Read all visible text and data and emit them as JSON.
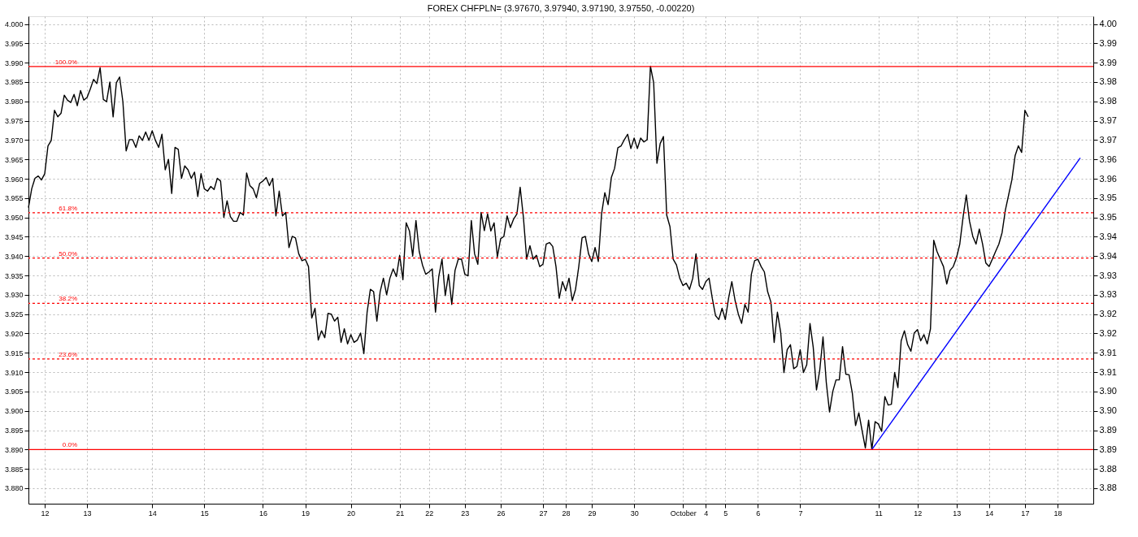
{
  "chart_data": {
    "type": "line",
    "title": "FOREX CHFPLN= (3.97670, 3.97940, 3.97190, 3.97550, -0.00220)",
    "ylim": [
      3.876,
      4.002
    ],
    "y2lim": [
      3.876,
      4.002
    ],
    "categories": [
      null,
      null,
      null,
      null,
      null,
      "12",
      null,
      null,
      null,
      null,
      null,
      null,
      null,
      null,
      null,
      null,
      null,
      null,
      "13",
      null,
      null,
      null,
      null,
      null,
      null,
      null,
      null,
      null,
      null,
      null,
      null,
      null,
      null,
      null,
      null,
      null,
      null,
      null,
      "14",
      null,
      null,
      null,
      null,
      null,
      null,
      null,
      null,
      null,
      null,
      null,
      null,
      null,
      null,
      null,
      "15",
      null,
      null,
      null,
      null,
      null,
      null,
      null,
      null,
      null,
      null,
      null,
      null,
      null,
      null,
      null,
      null,
      null,
      "16",
      null,
      null,
      null,
      null,
      null,
      null,
      null,
      null,
      null,
      null,
      null,
      null,
      "19",
      null,
      null,
      null,
      null,
      null,
      null,
      null,
      null,
      null,
      null,
      null,
      null,
      null,
      "20",
      null,
      null,
      null,
      null,
      null,
      null,
      null,
      null,
      null,
      null,
      null,
      null,
      null,
      null,
      "21",
      null,
      null,
      null,
      null,
      null,
      null,
      null,
      null,
      "22",
      null,
      null,
      null,
      null,
      null,
      null,
      null,
      null,
      null,
      null,
      "23",
      null,
      null,
      null,
      null,
      null,
      null,
      null,
      null,
      null,
      null,
      "26",
      null,
      null,
      null,
      null,
      null,
      null,
      null,
      null,
      null,
      null,
      null,
      null,
      "27",
      null,
      null,
      null,
      null,
      null,
      null,
      "28",
      null,
      null,
      null,
      null,
      null,
      null,
      null,
      "29",
      null,
      null,
      null,
      null,
      null,
      null,
      null,
      null,
      null,
      null,
      null,
      null,
      "30",
      null,
      null,
      null,
      null,
      null,
      null,
      null,
      null,
      null,
      null,
      null,
      null,
      null,
      null,
      "October",
      null,
      null,
      null,
      null,
      null,
      null,
      "4",
      null,
      null,
      null,
      null,
      null,
      "5",
      null,
      null,
      null,
      null,
      null,
      null,
      null,
      null,
      null,
      "6",
      null,
      null,
      null,
      null,
      null,
      null,
      null,
      null,
      null,
      null,
      null,
      null,
      "7",
      null,
      null,
      null,
      null,
      null,
      null,
      null,
      null,
      null,
      null,
      null,
      null,
      null,
      null,
      null,
      null,
      null,
      null,
      null,
      null,
      null,
      null,
      null,
      "11",
      null,
      null,
      null,
      null,
      null,
      null,
      null,
      null,
      null,
      null,
      null,
      "12",
      null,
      null,
      null,
      null,
      null,
      null,
      null,
      null,
      null,
      null,
      null,
      "13",
      null,
      null,
      null,
      null,
      null,
      null,
      null,
      null,
      null,
      "14",
      null,
      null,
      null,
      null,
      null,
      null,
      null,
      null,
      null,
      null,
      "17",
      null,
      null,
      null,
      null,
      null,
      null,
      null,
      null,
      null,
      "18",
      null,
      null,
      null,
      null,
      null,
      null,
      null,
      null,
      null,
      null,
      null
    ],
    "yticks": [
      {
        "value": 3.88,
        "label": "3.880"
      },
      {
        "value": 3.885,
        "label": "3.885"
      },
      {
        "value": 3.89,
        "label": "3.890"
      },
      {
        "value": 3.895,
        "label": "3.895"
      },
      {
        "value": 3.9,
        "label": "3.900"
      },
      {
        "value": 3.905,
        "label": "3.905"
      },
      {
        "value": 3.91,
        "label": "3.910"
      },
      {
        "value": 3.915,
        "label": "3.915"
      },
      {
        "value": 3.92,
        "label": "3.920"
      },
      {
        "value": 3.925,
        "label": "3.925"
      },
      {
        "value": 3.93,
        "label": "3.930"
      },
      {
        "value": 3.935,
        "label": "3.935"
      },
      {
        "value": 3.94,
        "label": "3.940"
      },
      {
        "value": 3.945,
        "label": "3.945"
      },
      {
        "value": 3.95,
        "label": "3.950"
      },
      {
        "value": 3.955,
        "label": "3.955"
      },
      {
        "value": 3.96,
        "label": "3.960"
      },
      {
        "value": 3.965,
        "label": "3.965"
      },
      {
        "value": 3.97,
        "label": "3.970"
      },
      {
        "value": 3.975,
        "label": "3.975"
      },
      {
        "value": 3.98,
        "label": "3.980"
      },
      {
        "value": 3.985,
        "label": "3.985"
      },
      {
        "value": 3.99,
        "label": "3.990"
      },
      {
        "value": 3.995,
        "label": "3.995"
      },
      {
        "value": 4.0,
        "label": "4.000"
      }
    ],
    "y2ticks": [
      {
        "value": 3.88,
        "label": "3.88"
      },
      {
        "value": 3.885,
        "label": "3.88"
      },
      {
        "value": 3.89,
        "label": "3.89"
      },
      {
        "value": 3.895,
        "label": "3.89"
      },
      {
        "value": 3.9,
        "label": "3.90"
      },
      {
        "value": 3.905,
        "label": "3.90"
      },
      {
        "value": 3.91,
        "label": "3.91"
      },
      {
        "value": 3.915,
        "label": "3.91"
      },
      {
        "value": 3.92,
        "label": "3.92"
      },
      {
        "value": 3.925,
        "label": "3.92"
      },
      {
        "value": 3.93,
        "label": "3.93"
      },
      {
        "value": 3.935,
        "label": "3.93"
      },
      {
        "value": 3.94,
        "label": "3.94"
      },
      {
        "value": 3.945,
        "label": "3.94"
      },
      {
        "value": 3.95,
        "label": "3.95"
      },
      {
        "value": 3.955,
        "label": "3.95"
      },
      {
        "value": 3.96,
        "label": "3.96"
      },
      {
        "value": 3.965,
        "label": "3.96"
      },
      {
        "value": 3.97,
        "label": "3.97"
      },
      {
        "value": 3.975,
        "label": "3.97"
      },
      {
        "value": 3.98,
        "label": "3.98"
      },
      {
        "value": 3.985,
        "label": "3.98"
      },
      {
        "value": 3.99,
        "label": "3.99"
      },
      {
        "value": 3.995,
        "label": "3.99"
      },
      {
        "value": 4.0,
        "label": "4.00"
      }
    ],
    "grid": true,
    "ref_lines": [
      {
        "axis": "y",
        "value": 3.989,
        "color": "#ff0000",
        "line_style": "solid"
      },
      {
        "axis": "y",
        "value": 3.9512,
        "color": "#ff0000",
        "line_style": "dotted"
      },
      {
        "axis": "y",
        "value": 3.9395,
        "color": "#ff0000",
        "line_style": "dotted"
      },
      {
        "axis": "y",
        "value": 3.9278,
        "color": "#ff0000",
        "line_style": "dotted"
      },
      {
        "axis": "y",
        "value": 3.9134,
        "color": "#ff0000",
        "line_style": "dotted"
      },
      {
        "axis": "y",
        "value": 3.89,
        "color": "#ff0000",
        "line_style": "solid"
      }
    ],
    "annotations": [
      {
        "text": "100.0%",
        "y": 3.989
      },
      {
        "text": "61.8%",
        "y": 3.9512
      },
      {
        "text": "50.0%",
        "y": 3.9395
      },
      {
        "text": "38.2%",
        "y": 3.9278
      },
      {
        "text": "23.6%",
        "y": 3.9134
      },
      {
        "text": "0.0%",
        "y": 3.89
      }
    ],
    "series": [
      {
        "color": "#000000",
        "values": [
          3.9525,
          3.9574,
          3.9601,
          3.9607,
          3.9597,
          3.9613,
          3.9685,
          3.9699,
          3.9777,
          3.976,
          3.9769,
          3.9816,
          3.9803,
          3.9797,
          3.9818,
          3.9789,
          3.9828,
          3.9803,
          3.981,
          3.9832,
          3.9857,
          3.9846,
          3.9887,
          3.9805,
          3.9799,
          3.985,
          3.976,
          3.9848,
          3.9863,
          3.9799,
          3.9672,
          3.9701,
          3.9701,
          3.9681,
          3.9711,
          3.9699,
          3.9721,
          3.9699,
          3.9724,
          3.9699,
          3.9681,
          3.9715,
          3.9623,
          3.965,
          3.9562,
          3.9681,
          3.9676,
          3.9601,
          3.9633,
          3.9623,
          3.9601,
          3.9617,
          3.9554,
          3.9613,
          3.9574,
          3.9568,
          3.958,
          3.9572,
          3.9601,
          3.9594,
          3.95,
          3.9543,
          3.9502,
          3.949,
          3.949,
          3.9513,
          3.9506,
          3.9615,
          3.9582,
          3.9574,
          3.9551,
          3.9588,
          3.9594,
          3.9603,
          3.9582,
          3.9601,
          3.9504,
          3.9568,
          3.9504,
          3.9513,
          3.9422,
          3.9451,
          3.9447,
          3.9406,
          3.9388,
          3.9392,
          3.9373,
          3.924,
          3.9265,
          3.9183,
          3.9207,
          3.9189,
          3.9252,
          3.925,
          3.9232,
          3.9242,
          3.9177,
          3.9212,
          3.9173,
          3.9197,
          3.9177,
          3.9183,
          3.9201,
          3.9148,
          3.9255,
          3.9314,
          3.9308,
          3.9232,
          3.9308,
          3.9343,
          3.93,
          3.9343,
          3.9367,
          3.9347,
          3.9402,
          3.9339,
          3.9486,
          3.9465,
          3.94,
          3.9492,
          3.9412,
          3.9377,
          3.9353,
          3.9359,
          3.9367,
          3.9255,
          3.9347,
          3.9392,
          3.9298,
          3.9353,
          3.9275,
          3.9363,
          3.9392,
          3.9392,
          3.9353,
          3.9349,
          3.9492,
          3.9406,
          3.9379,
          3.9513,
          3.9466,
          3.9509,
          3.9465,
          3.9486,
          3.9398,
          3.9445,
          3.9451,
          3.9504,
          3.9474,
          3.9496,
          3.9509,
          3.9578,
          3.95,
          3.9392,
          3.9427,
          3.9392,
          3.9402,
          3.9373,
          3.9379,
          3.9431,
          3.9435,
          3.9425,
          3.9373,
          3.9291,
          3.9334,
          3.931,
          3.9343,
          3.9285,
          3.9314,
          3.9373,
          3.9447,
          3.9451,
          3.9406,
          3.9386,
          3.9422,
          3.9386,
          3.9509,
          3.9564,
          3.9533,
          3.9603,
          3.9627,
          3.968,
          3.9685,
          3.9701,
          3.9715,
          3.9678,
          3.9705,
          3.9678,
          3.9705,
          3.9695,
          3.9701,
          3.9891,
          3.9848,
          3.964,
          3.9691,
          3.9709,
          3.9506,
          3.9476,
          3.9392,
          3.9377,
          3.9343,
          3.9324,
          3.933,
          3.9314,
          3.9343,
          3.9406,
          3.9324,
          3.9314,
          3.9334,
          3.9343,
          3.9291,
          3.9246,
          3.9236,
          3.9265,
          3.9236,
          3.9291,
          3.9334,
          3.9285,
          3.925,
          3.9226,
          3.9275,
          3.9255,
          3.9353,
          3.9388,
          3.9392,
          3.9373,
          3.9359,
          3.9308,
          3.9281,
          3.9177,
          3.9255,
          3.9203,
          3.9099,
          3.9158,
          3.9171,
          3.9109,
          3.9115,
          3.9158,
          3.9099,
          3.9119,
          3.9226,
          3.9164,
          3.9054,
          3.9105,
          3.9191,
          3.9074,
          3.8997,
          3.905,
          3.908,
          3.908,
          3.9166,
          3.9095,
          3.9093,
          3.9046,
          3.8962,
          3.8995,
          3.8949,
          3.8904,
          3.8976,
          3.89,
          3.8972,
          3.8966,
          3.8947,
          3.9037,
          3.9015,
          3.9017,
          3.9099,
          3.906,
          3.9181,
          3.9207,
          3.9171,
          3.9154,
          3.9201,
          3.921,
          3.9181,
          3.9197,
          3.9173,
          3.9212,
          3.9441,
          3.9412,
          3.9392,
          3.9373,
          3.9328,
          3.9363,
          3.9373,
          3.9396,
          3.9431,
          3.95,
          3.9558,
          3.949,
          3.9451,
          3.9431,
          3.947,
          3.9431,
          3.9382,
          3.9373,
          3.9392,
          3.9412,
          3.9431,
          3.9461,
          3.9519,
          3.9558,
          3.9597,
          3.966,
          3.9685,
          3.9668,
          3.9777,
          3.976,
          null,
          null,
          null,
          null,
          null,
          null,
          null,
          null,
          null,
          null,
          null,
          null,
          null,
          null,
          null,
          null,
          null,
          null,
          null,
          null
        ]
      },
      {
        "color": "#0000ff",
        "values": [
          null,
          null,
          null,
          null,
          null,
          null,
          null,
          null,
          null,
          null,
          null,
          null,
          null,
          null,
          null,
          null,
          null,
          null,
          null,
          null,
          null,
          null,
          null,
          null,
          null,
          null,
          null,
          null,
          null,
          null,
          null,
          null,
          null,
          null,
          null,
          null,
          null,
          null,
          null,
          null,
          null,
          null,
          null,
          null,
          null,
          null,
          null,
          null,
          null,
          null,
          null,
          null,
          null,
          null,
          null,
          null,
          null,
          null,
          null,
          null,
          null,
          null,
          null,
          null,
          null,
          null,
          null,
          null,
          null,
          null,
          null,
          null,
          null,
          null,
          null,
          null,
          null,
          null,
          null,
          null,
          null,
          null,
          null,
          null,
          null,
          null,
          null,
          null,
          null,
          null,
          null,
          null,
          null,
          null,
          null,
          null,
          null,
          null,
          null,
          null,
          null,
          null,
          null,
          null,
          null,
          null,
          null,
          null,
          null,
          null,
          null,
          null,
          null,
          null,
          null,
          null,
          null,
          null,
          null,
          null,
          null,
          null,
          null,
          null,
          null,
          null,
          null,
          null,
          null,
          null,
          null,
          null,
          null,
          null,
          null,
          null,
          null,
          null,
          null,
          null,
          null,
          null,
          null,
          null,
          null,
          null,
          null,
          null,
          null,
          null,
          null,
          null,
          null,
          null,
          null,
          null,
          null,
          null,
          null,
          null,
          null,
          null,
          null,
          null,
          null,
          null,
          null,
          null,
          null,
          null,
          null,
          null,
          null,
          null,
          null,
          null,
          null,
          null,
          null,
          null,
          null,
          null,
          null,
          null,
          null,
          null,
          null,
          null,
          null,
          null,
          null,
          null,
          null,
          null,
          null,
          null,
          null,
          null,
          null,
          null,
          null,
          null,
          null,
          null,
          null,
          null,
          null,
          null,
          null,
          null,
          null,
          null,
          null,
          null,
          null,
          null,
          null,
          null,
          null,
          null,
          null,
          null,
          null,
          null,
          null,
          null,
          null,
          null,
          null,
          null,
          null,
          null,
          null,
          null,
          null,
          null,
          null,
          null,
          null,
          null,
          null,
          null,
          null,
          null,
          null,
          null,
          null,
          null,
          null,
          null,
          null,
          null,
          null,
          null,
          null,
          null,
          null,
          null,
          null,
          3.89,
          null,
          null,
          null,
          null,
          null,
          null,
          null,
          null,
          null,
          null,
          null,
          null,
          null,
          null,
          null,
          null,
          null,
          null,
          null,
          null,
          null,
          null,
          null,
          null,
          null,
          null,
          null,
          null,
          null,
          null,
          null,
          null,
          null,
          null,
          null,
          null,
          null,
          null,
          null,
          null,
          null,
          null,
          null,
          null,
          null,
          null,
          null,
          null,
          null,
          null,
          null,
          null,
          null,
          null,
          null,
          null,
          null,
          null,
          null,
          null,
          null,
          null,
          null,
          3.9654,
          null,
          null,
          null,
          null
        ]
      }
    ]
  }
}
